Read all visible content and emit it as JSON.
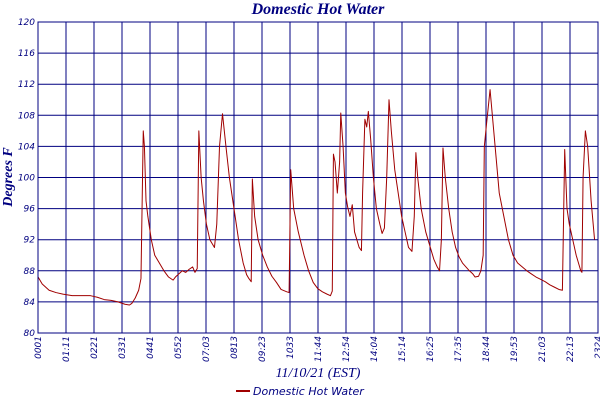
{
  "chart_data": {
    "type": "line",
    "title": "Domestic Hot Water",
    "xlabel": "11/10/21 (EST)",
    "ylabel": "Degrees F",
    "ylim": [
      80,
      120
    ],
    "yticks": [
      80,
      84,
      88,
      92,
      96,
      100,
      104,
      108,
      112,
      116,
      120
    ],
    "xtick_labels": [
      "0001",
      "01:11",
      "0221",
      "0331",
      "0441",
      "0552",
      "07:03",
      "0813",
      "09:23",
      "1033",
      "11:44",
      "12:54",
      "14:04",
      "15:14",
      "16:25",
      "17:35",
      "18:44",
      "19:53",
      "21:03",
      "22:13",
      "2324"
    ],
    "x_unit": "hours",
    "xlim": [
      0.0167,
      24.4
    ],
    "grid": true,
    "legend_position": "bottom-center",
    "colors": {
      "line": "#a00000",
      "grid": "#000080",
      "text": "#000080"
    },
    "series": [
      {
        "name": "Domestic Hot Water",
        "points": [
          [
            0.02,
            87.2
          ],
          [
            0.2,
            86.3
          ],
          [
            0.5,
            85.5
          ],
          [
            0.8,
            85.2
          ],
          [
            1.1,
            85.0
          ],
          [
            1.5,
            84.8
          ],
          [
            1.9,
            84.8
          ],
          [
            2.3,
            84.8
          ],
          [
            2.6,
            84.6
          ],
          [
            2.9,
            84.3
          ],
          [
            3.2,
            84.2
          ],
          [
            3.5,
            84.0
          ],
          [
            3.8,
            83.7
          ],
          [
            4.0,
            83.6
          ],
          [
            4.1,
            83.8
          ],
          [
            4.25,
            84.5
          ],
          [
            4.4,
            85.5
          ],
          [
            4.5,
            87
          ],
          [
            4.6,
            106
          ],
          [
            4.65,
            104
          ],
          [
            4.72,
            97
          ],
          [
            4.8,
            95
          ],
          [
            4.95,
            92
          ],
          [
            5.1,
            90
          ],
          [
            5.3,
            89
          ],
          [
            5.5,
            88
          ],
          [
            5.7,
            87.2
          ],
          [
            5.9,
            86.8
          ],
          [
            6.0,
            87.2
          ],
          [
            6.15,
            87.6
          ],
          [
            6.3,
            88
          ],
          [
            6.45,
            87.8
          ],
          [
            6.6,
            88.2
          ],
          [
            6.75,
            88.5
          ],
          [
            6.85,
            87.8
          ],
          [
            6.95,
            88.3
          ],
          [
            7.02,
            106
          ],
          [
            7.12,
            100
          ],
          [
            7.22,
            97
          ],
          [
            7.35,
            94
          ],
          [
            7.5,
            92
          ],
          [
            7.7,
            91
          ],
          [
            7.8,
            94
          ],
          [
            7.92,
            104
          ],
          [
            8.05,
            108.2
          ],
          [
            8.2,
            104
          ],
          [
            8.35,
            100
          ],
          [
            8.55,
            96
          ],
          [
            8.75,
            92
          ],
          [
            8.95,
            89
          ],
          [
            9.1,
            87.5
          ],
          [
            9.2,
            87
          ],
          [
            9.3,
            86.6
          ],
          [
            9.35,
            99.8
          ],
          [
            9.45,
            95
          ],
          [
            9.6,
            92
          ],
          [
            9.8,
            90
          ],
          [
            10.0,
            88.5
          ],
          [
            10.2,
            87.3
          ],
          [
            10.4,
            86.5
          ],
          [
            10.6,
            85.6
          ],
          [
            10.85,
            85.3
          ],
          [
            10.95,
            85.2
          ],
          [
            11.02,
            101
          ],
          [
            11.15,
            96
          ],
          [
            11.35,
            93
          ],
          [
            11.6,
            90
          ],
          [
            11.8,
            88
          ],
          [
            12.0,
            86.5
          ],
          [
            12.2,
            85.7
          ],
          [
            12.4,
            85.3
          ],
          [
            12.6,
            85.0
          ],
          [
            12.75,
            84.8
          ],
          [
            12.83,
            85.4
          ],
          [
            12.88,
            103
          ],
          [
            12.95,
            102
          ],
          [
            13.05,
            98
          ],
          [
            13.15,
            102
          ],
          [
            13.2,
            108.3
          ],
          [
            13.3,
            104
          ],
          [
            13.4,
            98
          ],
          [
            13.5,
            96.2
          ],
          [
            13.6,
            95
          ],
          [
            13.7,
            96.5
          ],
          [
            13.8,
            93
          ],
          [
            14.0,
            91
          ],
          [
            14.1,
            90.6
          ],
          [
            14.15,
            98
          ],
          [
            14.25,
            107.5
          ],
          [
            14.33,
            106.5
          ],
          [
            14.4,
            108.5
          ],
          [
            14.5,
            105
          ],
          [
            14.62,
            100
          ],
          [
            14.75,
            96
          ],
          [
            14.9,
            94
          ],
          [
            15.0,
            92.8
          ],
          [
            15.1,
            93.5
          ],
          [
            15.2,
            100
          ],
          [
            15.3,
            110
          ],
          [
            15.4,
            106
          ],
          [
            15.55,
            101
          ],
          [
            15.7,
            98
          ],
          [
            15.85,
            95
          ],
          [
            16.0,
            93
          ],
          [
            16.15,
            91
          ],
          [
            16.3,
            90.5
          ],
          [
            16.4,
            95
          ],
          [
            16.47,
            103.2
          ],
          [
            16.55,
            100
          ],
          [
            16.7,
            96
          ],
          [
            16.9,
            93
          ],
          [
            17.1,
            91
          ],
          [
            17.25,
            89.5
          ],
          [
            17.4,
            88.5
          ],
          [
            17.5,
            88
          ],
          [
            17.58,
            92
          ],
          [
            17.65,
            103.8
          ],
          [
            17.75,
            100
          ],
          [
            17.9,
            96
          ],
          [
            18.05,
            93
          ],
          [
            18.2,
            91
          ],
          [
            18.35,
            89.8
          ],
          [
            18.5,
            89
          ],
          [
            18.65,
            88.5
          ],
          [
            18.8,
            88
          ],
          [
            18.95,
            87.6
          ],
          [
            19.05,
            87.2
          ],
          [
            19.2,
            87.3
          ],
          [
            19.3,
            88
          ],
          [
            19.4,
            90
          ],
          [
            19.45,
            104
          ],
          [
            19.55,
            107
          ],
          [
            19.62,
            109
          ],
          [
            19.7,
            111.3
          ],
          [
            19.8,
            108
          ],
          [
            19.95,
            103
          ],
          [
            20.1,
            98
          ],
          [
            20.3,
            95
          ],
          [
            20.5,
            92
          ],
          [
            20.7,
            90
          ],
          [
            20.9,
            89
          ],
          [
            21.1,
            88.5
          ],
          [
            21.3,
            88
          ],
          [
            21.5,
            87.6
          ],
          [
            21.7,
            87.2
          ],
          [
            21.9,
            86.9
          ],
          [
            22.1,
            86.6
          ],
          [
            22.3,
            86.2
          ],
          [
            22.5,
            85.9
          ],
          [
            22.7,
            85.6
          ],
          [
            22.85,
            85.5
          ],
          [
            22.95,
            103.6
          ],
          [
            23.05,
            96
          ],
          [
            23.15,
            94
          ],
          [
            23.3,
            92
          ],
          [
            23.45,
            90
          ],
          [
            23.6,
            88.5
          ],
          [
            23.65,
            88
          ],
          [
            23.7,
            87.8
          ],
          [
            23.75,
            100
          ],
          [
            23.85,
            106
          ],
          [
            23.95,
            104
          ],
          [
            24.1,
            97
          ],
          [
            24.25,
            92
          ]
        ]
      }
    ]
  }
}
